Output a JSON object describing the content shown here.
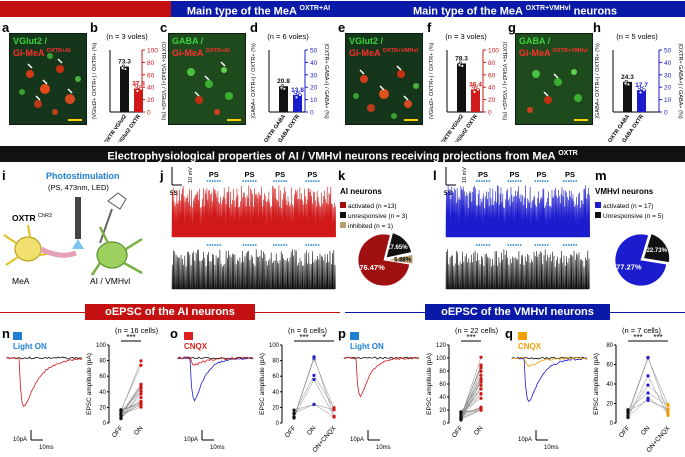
{
  "banners": {
    "left_title": "Main type of the MeA ",
    "left_sup": "OXTR+AI",
    "left_suffix": " neurons",
    "right_title": "Main type of the MeA ",
    "right_sup": "OXTR+VMHvl",
    "right_suffix": " neurons",
    "ephys_title": "Electrophysiological properties of AI / VMHvl neurons receiving projections from MeA ",
    "ephys_sup": "OXTR",
    "ai_epsc": "oEPSC of the AI neurons",
    "vmh_epsc": "oEPSC of the VMHvl neurons"
  },
  "panel_labels": {
    "a": "a",
    "b": "b",
    "c": "c",
    "d": "d",
    "e": "e",
    "f": "f",
    "g": "g",
    "h": "h",
    "i": "i",
    "j": "j",
    "k": "k",
    "l": "l",
    "m": "m",
    "n": "n",
    "o": "o",
    "p": "p",
    "q": "q"
  },
  "micro": {
    "a": {
      "line1": "VGlut2 /",
      "line2": "Gi-MeA ",
      "sup": "OXTR+AI"
    },
    "c": {
      "line1": "GABA /",
      "line2": "Gi-MeA ",
      "sup": "OXTR+AI"
    },
    "e": {
      "line1": "VGlut2 /",
      "line2": "Gi-MeA ",
      "sup": "OXTR+VMHvl"
    },
    "g": {
      "line1": "GABA /",
      "line2": "Gi-MeA ",
      "sup": "OXTR+VMHvl"
    }
  },
  "colors": {
    "blue_banner": "#0a1aa8",
    "red_banner": "#c41010",
    "dark_banner": "#111111",
    "ai_red": "#d11919",
    "vmh_blue": "#1c1ccf",
    "photo_blue": "#1f7fd0",
    "cnqx_orange": "#f2a000",
    "gold": "#b8a070"
  },
  "chart_data": [
    {
      "panel": "b",
      "type": "bar",
      "n_label": "(n = 3 voles)",
      "categories": [
        "OXTR VGlut2",
        "VGlut2 OXTR"
      ],
      "values": [
        73.3,
        37.8
      ],
      "value_labels": [
        "73.3",
        "37.8"
      ],
      "ylabel_left": "(VGlut2+ OXTR+) / OXTR+ (%)",
      "ylabel_right": "(OXTR+ VGlut2+) / VGlut2+ (%)",
      "ylim": [
        0,
        100
      ],
      "ticks": [
        "0",
        "20",
        "40",
        "60",
        "80",
        "100"
      ]
    },
    {
      "panel": "d",
      "type": "bar",
      "n_label": "(n = 6 voles)",
      "categories": [
        "OXTR GABA",
        "GABA OXTR"
      ],
      "values": [
        20.8,
        13.8
      ],
      "value_labels": [
        "20.8",
        "13.8"
      ],
      "ylabel_left": "(GABA+ OXTR+) / OXTR+ (%)",
      "ylabel_right": "(OXTR+ GABA+) / GABA+ (%)",
      "ylim": [
        0,
        50
      ],
      "ticks": [
        "0",
        "10",
        "20",
        "30",
        "40",
        "50"
      ]
    },
    {
      "panel": "f",
      "type": "bar",
      "n_label": "(n = 3 voles)",
      "categories": [
        "OXTR VGlut2",
        "VGlut2 OXTR"
      ],
      "values": [
        78.3,
        36.4
      ],
      "value_labels": [
        "78.3",
        "36.4"
      ],
      "ylabel_left": "(VGlut2+ OXTR+) / OXTR+ (%)",
      "ylabel_right": "(OXTR+ VGlut2+) / VGlut2+ (%)",
      "ylim": [
        0,
        100
      ],
      "ticks": [
        "0",
        "20",
        "40",
        "60",
        "80",
        "100"
      ]
    },
    {
      "panel": "h",
      "type": "bar",
      "n_label": "(n = 5 voles)",
      "categories": [
        "OXTR GABA",
        "GABA OXTR"
      ],
      "values": [
        24.3,
        17.7
      ],
      "value_labels": [
        "24.3",
        "17.7"
      ],
      "ylabel_left": "(GABA+ OXTR+) / OXTR+ (%)",
      "ylabel_right": "(OXTR+ GABA+) / GABA+ (%)",
      "ylim": [
        0,
        50
      ],
      "ticks": [
        "0",
        "10",
        "20",
        "30",
        "40",
        "50"
      ]
    },
    {
      "panel": "k",
      "type": "pie",
      "title": "AI neurons",
      "legend": [
        "activated (n =13)",
        "unresponsive (n = 3)",
        "inhibited (n = 1)"
      ],
      "values": [
        76.47,
        17.65,
        5.88
      ],
      "value_labels": [
        "76.47%",
        "17.65%",
        "5.88%"
      ],
      "colors": [
        "#a01010",
        "#111111",
        "#b8a070"
      ]
    },
    {
      "panel": "m",
      "type": "pie",
      "title": "VMHvl neurons",
      "legend": [
        "activated (n = 17)",
        "Unresponsive (n = 5)"
      ],
      "values": [
        77.27,
        22.73
      ],
      "value_labels": [
        "77.27%",
        "22.73%"
      ],
      "colors": [
        "#1c1ccf",
        "#111111"
      ]
    },
    {
      "panel": "n",
      "type": "scatter",
      "n_label": "(n = 16 cells)",
      "categories": [
        "OFF",
        "ON"
      ],
      "ylabel": "EPSC amplitude (pA)",
      "ylim": [
        0,
        100
      ],
      "ticks": [
        "0",
        "20",
        "40",
        "60",
        "80",
        "100"
      ],
      "sig": [
        "***"
      ]
    },
    {
      "panel": "o",
      "type": "scatter",
      "n_label": "(n = 6 cells)",
      "categories": [
        "OFF",
        "ON",
        "ON+CNQX"
      ],
      "ylabel": "EPSC amplitude (pA)",
      "ylim": [
        0,
        100
      ],
      "ticks": [
        "0",
        "20",
        "40",
        "60",
        "80",
        "100"
      ],
      "sig": [
        "***",
        "*"
      ]
    },
    {
      "panel": "p",
      "type": "scatter",
      "n_label": "(n = 22 cells)",
      "categories": [
        "OFF",
        "ON"
      ],
      "ylabel": "EPSC amplitude (pA)",
      "ylim": [
        0,
        120
      ],
      "ticks": [
        "0",
        "20",
        "40",
        "60",
        "80",
        "100",
        "120"
      ],
      "sig": [
        "***"
      ]
    },
    {
      "panel": "q",
      "type": "scatter",
      "n_label": "(n = 7 cells)",
      "categories": [
        "OFF",
        "ON",
        "ON+CNQX"
      ],
      "ylabel": "EPSC amplitude (pA)",
      "ylim": [
        0,
        80
      ],
      "ticks": [
        "0",
        "20",
        "40",
        "60",
        "80"
      ],
      "sig": [
        "***",
        "***"
      ]
    }
  ],
  "schematic": {
    "photostim": "Photostimulation",
    "params": "(PS, 473nm, LED)",
    "oxtr": "OXTR",
    "chr2": "ChR2",
    "mea": "MeA",
    "target": "AI / VMHvl"
  },
  "traces": {
    "ps_label": "PS",
    "scale_time": "5S",
    "scale_mv": "10 mV",
    "light_on": "Light ON",
    "cnqx": "CNQX",
    "scale_pa": "10pA",
    "scale_ms": "10ms"
  }
}
